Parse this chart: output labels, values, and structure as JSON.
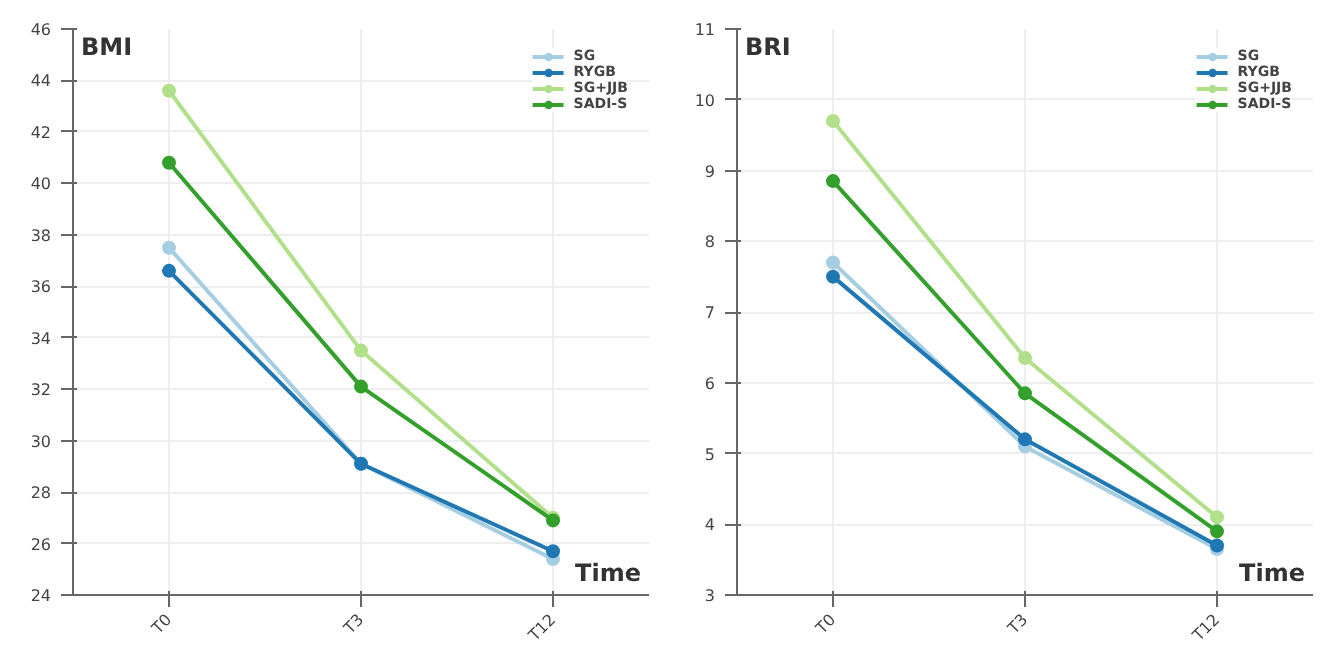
{
  "chart_data": [
    {
      "type": "line",
      "ylabel": "BMI",
      "xlabel": "Time",
      "categories": [
        "T0",
        "T3",
        "T12"
      ],
      "ylim": [
        24,
        46
      ],
      "yticks": [
        24,
        26,
        28,
        30,
        32,
        34,
        36,
        38,
        40,
        42,
        44,
        46
      ],
      "grid": true,
      "legend": "top right",
      "marker": "circle",
      "series": [
        {
          "name": "SG",
          "color": "#a6cee3",
          "values": [
            37.5,
            29.1,
            25.4
          ]
        },
        {
          "name": "RYGB",
          "color": "#1f78b4",
          "values": [
            36.6,
            29.1,
            25.7
          ]
        },
        {
          "name": "SG+JJB",
          "color": "#b2df8a",
          "values": [
            43.6,
            33.5,
            27.0
          ]
        },
        {
          "name": "SADI-S",
          "color": "#33a02c",
          "values": [
            40.8,
            32.1,
            26.9
          ]
        }
      ]
    },
    {
      "type": "line",
      "ylabel": "BRI",
      "xlabel": "Time",
      "categories": [
        "T0",
        "T3",
        "T12"
      ],
      "ylim": [
        3,
        11
      ],
      "yticks": [
        3,
        4,
        5,
        6,
        7,
        8,
        9,
        10,
        11
      ],
      "grid": true,
      "legend": "top right",
      "marker": "circle",
      "series": [
        {
          "name": "SG",
          "color": "#a6cee3",
          "values": [
            7.7,
            5.1,
            3.65
          ]
        },
        {
          "name": "RYGB",
          "color": "#1f78b4",
          "values": [
            7.5,
            5.2,
            3.7
          ]
        },
        {
          "name": "SG+JJB",
          "color": "#b2df8a",
          "values": [
            9.7,
            6.35,
            4.1
          ]
        },
        {
          "name": "SADI-S",
          "color": "#33a02c",
          "values": [
            8.85,
            5.85,
            3.9
          ]
        }
      ]
    }
  ]
}
